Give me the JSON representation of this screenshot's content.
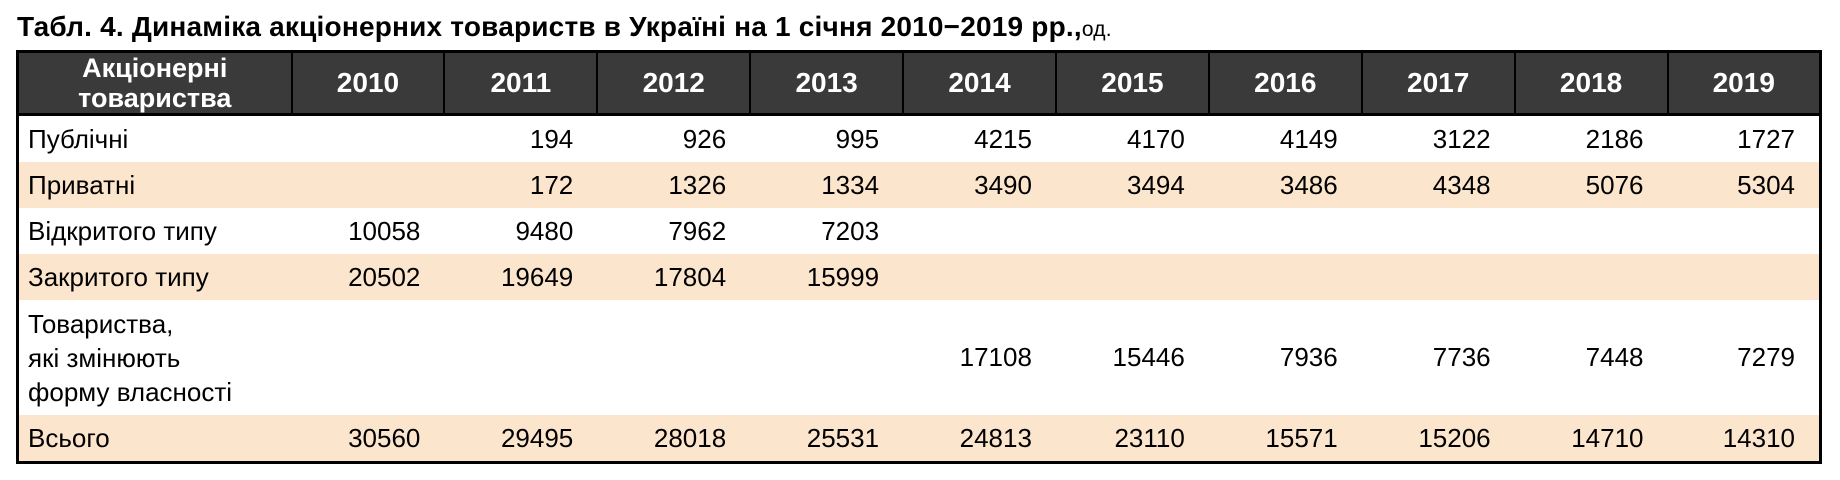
{
  "title": {
    "main": "Табл. 4. Динаміка акціонерних товариств в Україні на 1 січня 2010−2019 рр.,",
    "unit": "од."
  },
  "table": {
    "corner_label_lines": [
      "Акціонерні",
      "товариства"
    ],
    "years": [
      "2010",
      "2011",
      "2012",
      "2013",
      "2014",
      "2015",
      "2016",
      "2017",
      "2018",
      "2019"
    ],
    "rows": [
      {
        "label_lines": [
          "Публічні"
        ],
        "striped": false,
        "values": [
          "",
          "194",
          "926",
          "995",
          "4215",
          "4170",
          "4149",
          "3122",
          "2186",
          "1727"
        ]
      },
      {
        "label_lines": [
          "Приватні"
        ],
        "striped": true,
        "values": [
          "",
          "172",
          "1326",
          "1334",
          "3490",
          "3494",
          "3486",
          "4348",
          "5076",
          "5304"
        ]
      },
      {
        "label_lines": [
          "Відкритого типу"
        ],
        "striped": false,
        "values": [
          "10058",
          "9480",
          "7962",
          "7203",
          "",
          "",
          "",
          "",
          "",
          ""
        ]
      },
      {
        "label_lines": [
          "Закритого типу"
        ],
        "striped": true,
        "values": [
          "20502",
          "19649",
          "17804",
          "15999",
          "",
          "",
          "",
          "",
          "",
          ""
        ]
      },
      {
        "label_lines": [
          "Товариства,",
          "які змінюють",
          "форму власності"
        ],
        "striped": false,
        "values": [
          "",
          "",
          "",
          "",
          "17108",
          "15446",
          "7936",
          "7736",
          "7448",
          "7279"
        ]
      },
      {
        "label_lines": [
          "Всього"
        ],
        "striped": true,
        "values": [
          "30560",
          "29495",
          "28018",
          "25531",
          "24813",
          "23110",
          "15571",
          "15206",
          "14710",
          "14310"
        ]
      }
    ],
    "colors": {
      "header_bg": "#3a3a3a",
      "header_text": "#ffffff",
      "stripe_bg": "#fce5cd",
      "border": "#000000"
    }
  },
  "chart_data": {
    "type": "table",
    "title": "Табл. 4. Динаміка акціонерних товариств в Україні на 1 січня 2010−2019 рр., од.",
    "columns": [
      "Акціонерні товариства",
      "2010",
      "2011",
      "2012",
      "2013",
      "2014",
      "2015",
      "2016",
      "2017",
      "2018",
      "2019"
    ],
    "rows": [
      [
        "Публічні",
        null,
        194,
        926,
        995,
        4215,
        4170,
        4149,
        3122,
        2186,
        1727
      ],
      [
        "Приватні",
        null,
        172,
        1326,
        1334,
        3490,
        3494,
        3486,
        4348,
        5076,
        5304
      ],
      [
        "Відкритого типу",
        10058,
        9480,
        7962,
        7203,
        null,
        null,
        null,
        null,
        null,
        null
      ],
      [
        "Закритого типу",
        20502,
        19649,
        17804,
        15999,
        null,
        null,
        null,
        null,
        null,
        null
      ],
      [
        "Товариства, які змінюють форму власності",
        null,
        null,
        null,
        null,
        17108,
        15446,
        7936,
        7736,
        7448,
        7279
      ],
      [
        "Всього",
        30560,
        29495,
        28018,
        25531,
        24813,
        23110,
        15571,
        15206,
        14710,
        14310
      ]
    ]
  }
}
